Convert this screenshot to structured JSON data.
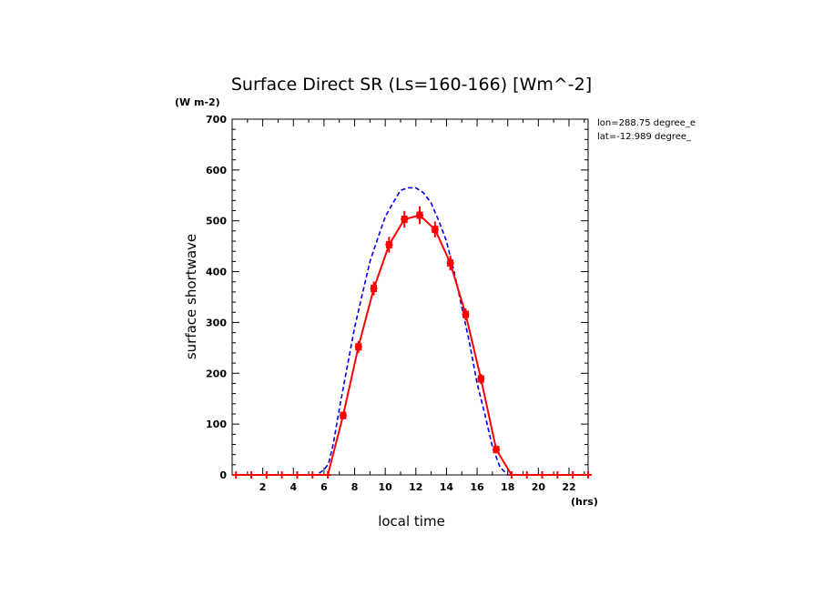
{
  "chart_data": {
    "type": "line",
    "title": "Surface Direct SR (Ls=160-166) [Wm^-2]",
    "yunit": "(W m-2)",
    "xunit": "(hrs)",
    "xlabel": "local time",
    "ylabel": "surface shortwave",
    "annotations": [
      "lon=288.75 degree_e",
      "lat=-12.989 degree_"
    ],
    "xlim": [
      0,
      23.25
    ],
    "ylim": [
      0,
      700
    ],
    "xticks": [
      2,
      4,
      6,
      8,
      10,
      12,
      14,
      16,
      18,
      20,
      22
    ],
    "yticks": [
      0,
      100,
      200,
      300,
      400,
      500,
      600,
      700
    ],
    "grid": false,
    "series": [
      {
        "name": "",
        "color": "#0000ee",
        "style": "dashed",
        "x": [
          0,
          5.5,
          6.0,
          6.3,
          6.6,
          7.0,
          7.5,
          8.0,
          8.5,
          9.0,
          9.5,
          10.0,
          10.5,
          11.0,
          11.5,
          12.0,
          12.5,
          13.0,
          13.5,
          14.0,
          14.5,
          15.0,
          15.5,
          16.0,
          16.5,
          17.0,
          17.5,
          18.0,
          18.5,
          23.25
        ],
        "y": [
          0,
          0,
          10,
          22,
          60,
          130,
          210,
          290,
          355,
          420,
          465,
          508,
          535,
          560,
          565,
          565,
          555,
          535,
          500,
          460,
          400,
          330,
          260,
          180,
          120,
          55,
          15,
          0,
          0,
          0
        ]
      },
      {
        "name": "",
        "color": "#ff0000",
        "style": "solid",
        "marker": "square-errorbar",
        "x": [
          0.25,
          1.25,
          2.25,
          3.25,
          4.25,
          5.25,
          6.25,
          7.25,
          8.25,
          9.25,
          10.25,
          11.25,
          12.25,
          13.25,
          14.25,
          15.25,
          16.25,
          17.25,
          18.25,
          19.25,
          20.25,
          21.25,
          22.25,
          23.25
        ],
        "y": [
          0,
          0,
          0,
          0,
          0,
          0,
          0,
          117,
          252,
          367,
          453,
          503,
          511,
          483,
          417,
          316,
          189,
          50,
          0,
          0,
          0,
          0,
          0,
          0
        ],
        "err": [
          0,
          0,
          0,
          0,
          0,
          0,
          0,
          4,
          8,
          10,
          12,
          13,
          14,
          12,
          11,
          8,
          6,
          4,
          0,
          0,
          0,
          0,
          0,
          0
        ]
      }
    ]
  }
}
